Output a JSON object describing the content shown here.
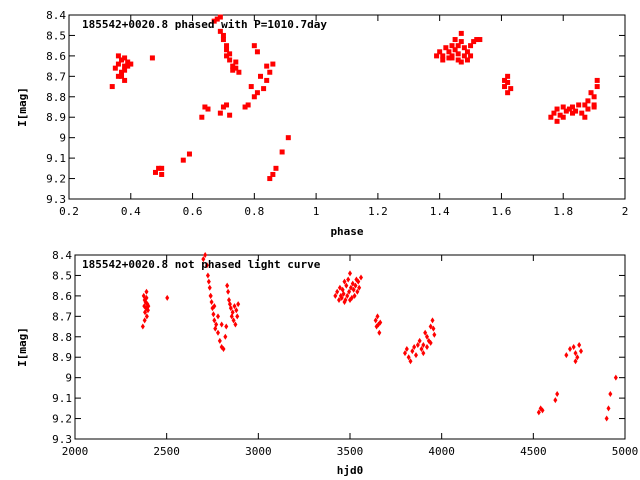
{
  "chart_data": [
    {
      "type": "scatter",
      "title": "185542+0020.8 phased with P=1010.7day",
      "xlabel": "phase",
      "ylabel": "I[mag]",
      "xlim": [
        0.2,
        2
      ],
      "ylim": [
        8.4,
        9.3
      ],
      "y_inverted": true,
      "grid": false,
      "marker_color": "#ff0000",
      "marker_shape": "square",
      "xticks": [
        "0.2",
        "0.4",
        "0.6",
        "0.8",
        "1",
        "1.2",
        "1.4",
        "1.6",
        "1.8",
        "2"
      ],
      "yticks": [
        "8.4",
        "8.5",
        "8.6",
        "8.7",
        "8.8",
        "8.9",
        "9",
        "9.1",
        "9.2",
        "9.3"
      ],
      "series": [
        {
          "x": [
            0.34,
            0.35,
            0.36,
            0.36,
            0.37,
            0.37,
            0.37,
            0.38,
            0.38,
            0.38,
            0.39,
            0.39,
            0.4,
            0.36,
            0.38,
            0.47,
            0.48,
            0.49,
            0.5,
            0.5,
            0.57,
            0.59,
            0.63,
            0.64,
            0.65,
            0.67,
            0.68,
            0.69,
            0.69,
            0.7,
            0.7,
            0.71,
            0.71,
            0.71,
            0.72,
            0.72,
            0.73,
            0.73,
            0.74,
            0.74,
            0.75,
            0.69,
            0.7,
            0.71,
            0.72,
            0.77,
            0.78,
            0.79,
            0.8,
            0.8,
            0.81,
            0.81,
            0.82,
            0.83,
            0.84,
            0.84,
            0.85,
            0.86,
            0.85,
            0.86,
            0.87,
            0.89,
            0.91
          ],
          "y": [
            8.75,
            8.66,
            8.6,
            8.64,
            8.62,
            8.68,
            8.7,
            8.61,
            8.65,
            8.67,
            8.63,
            8.65,
            8.64,
            8.7,
            8.72,
            8.61,
            9.17,
            9.15,
            9.15,
            9.18,
            9.11,
            9.08,
            8.9,
            8.85,
            8.86,
            8.43,
            8.42,
            8.41,
            8.48,
            8.5,
            8.52,
            8.55,
            8.57,
            8.6,
            8.59,
            8.62,
            8.65,
            8.67,
            8.63,
            8.66,
            8.68,
            8.88,
            8.85,
            8.84,
            8.89,
            8.85,
            8.84,
            8.75,
            8.8,
            8.55,
            8.58,
            8.78,
            8.7,
            8.76,
            8.72,
            8.65,
            8.68,
            8.64,
            9.2,
            9.18,
            9.15,
            9.07,
            9.0
          ]
        },
        {
          "x": [
            1.39,
            1.4,
            1.41,
            1.42,
            1.43,
            1.43,
            1.44,
            1.44,
            1.45,
            1.45,
            1.46,
            1.46,
            1.46,
            1.47,
            1.47,
            1.48,
            1.48,
            1.49,
            1.49,
            1.5,
            1.5,
            1.51,
            1.52,
            1.53,
            1.41,
            1.44,
            1.47,
            1.61,
            1.61,
            1.62,
            1.62,
            1.63,
            1.62,
            1.76,
            1.77,
            1.78,
            1.78,
            1.79,
            1.8,
            1.8,
            1.81,
            1.82,
            1.83,
            1.83,
            1.84,
            1.85,
            1.86,
            1.87,
            1.87,
            1.88,
            1.88,
            1.89,
            1.9,
            1.9,
            1.91,
            1.91,
            1.9
          ],
          "y": [
            8.6,
            8.58,
            8.6,
            8.56,
            8.58,
            8.61,
            8.55,
            8.6,
            8.52,
            8.57,
            8.55,
            8.59,
            8.62,
            8.49,
            8.53,
            8.56,
            8.6,
            8.58,
            8.62,
            8.55,
            8.6,
            8.53,
            8.52,
            8.52,
            8.62,
            8.61,
            8.63,
            8.72,
            8.75,
            8.7,
            8.73,
            8.76,
            8.78,
            8.9,
            8.88,
            8.92,
            8.86,
            8.89,
            8.85,
            8.9,
            8.87,
            8.86,
            8.88,
            8.85,
            8.87,
            8.84,
            8.88,
            8.9,
            8.84,
            8.86,
            8.82,
            8.78,
            8.8,
            8.84,
            8.75,
            8.72,
            8.85
          ]
        }
      ]
    },
    {
      "type": "scatter",
      "title": "185542+0020.8 not phased light curve",
      "xlabel": "hjd0",
      "ylabel": "I[mag]",
      "xlim": [
        2000,
        5000
      ],
      "ylim": [
        8.4,
        9.3
      ],
      "y_inverted": true,
      "grid": false,
      "marker_color": "#ff0000",
      "marker_shape": "diamond",
      "xticks": [
        "2000",
        "2500",
        "3000",
        "3500",
        "4000",
        "4500",
        "5000"
      ],
      "yticks": [
        "8.4",
        "8.5",
        "8.6",
        "8.7",
        "8.8",
        "8.9",
        "9",
        "9.1",
        "9.2",
        "9.3"
      ],
      "series": [
        {
          "x": [
            2370,
            2375,
            2378,
            2380,
            2382,
            2385,
            2388,
            2390,
            2392,
            2395,
            2398,
            2400,
            2380,
            2390,
            2503,
            2700,
            2710,
            2720,
            2725,
            2730,
            2735,
            2740,
            2745,
            2750,
            2755,
            2760,
            2765,
            2770,
            2780,
            2790,
            2800,
            2810,
            2820,
            2825,
            2830,
            2835,
            2840,
            2845,
            2850,
            2855,
            2860,
            2865,
            2870,
            2875,
            2880,
            2885,
            2890,
            2780,
            2800,
            2740,
            2760
          ],
          "y": [
            8.75,
            8.6,
            8.65,
            8.62,
            8.68,
            8.63,
            8.66,
            8.61,
            8.7,
            8.64,
            8.67,
            8.65,
            8.72,
            8.58,
            8.61,
            8.42,
            8.4,
            8.45,
            8.5,
            8.53,
            8.56,
            8.6,
            8.63,
            8.66,
            8.69,
            8.72,
            8.76,
            8.74,
            8.78,
            8.82,
            8.85,
            8.86,
            8.8,
            8.75,
            8.55,
            8.58,
            8.62,
            8.64,
            8.66,
            8.7,
            8.68,
            8.72,
            8.65,
            8.74,
            8.67,
            8.7,
            8.64,
            8.7,
            8.74,
            8.6,
            8.65
          ]
        },
        {
          "x": [
            3420,
            3430,
            3440,
            3445,
            3450,
            3455,
            3460,
            3465,
            3470,
            3475,
            3480,
            3485,
            3490,
            3495,
            3500,
            3505,
            3510,
            3515,
            3520,
            3525,
            3530,
            3535,
            3540,
            3545,
            3550,
            3470,
            3500,
            3560,
            3640,
            3645,
            3650,
            3655,
            3660,
            3665,
            3800,
            3810,
            3820,
            3830,
            3840,
            3850,
            3860,
            3870,
            3880,
            3890,
            3900,
            3910,
            3920,
            3930,
            3940,
            3950,
            3955,
            3960,
            3900,
            3920,
            3940
          ],
          "y": [
            8.6,
            8.58,
            8.62,
            8.56,
            8.6,
            8.61,
            8.57,
            8.59,
            8.53,
            8.62,
            8.55,
            8.6,
            8.52,
            8.58,
            8.49,
            8.56,
            8.61,
            8.54,
            8.57,
            8.6,
            8.55,
            8.52,
            8.58,
            8.53,
            8.56,
            8.63,
            8.62,
            8.51,
            8.72,
            8.75,
            8.7,
            8.74,
            8.78,
            8.73,
            8.88,
            8.86,
            8.9,
            8.92,
            8.87,
            8.85,
            8.89,
            8.84,
            8.82,
            8.86,
            8.84,
            8.78,
            8.8,
            8.82,
            8.75,
            8.72,
            8.76,
            8.79,
            8.88,
            8.85,
            8.83
          ]
        },
        {
          "x": [
            4530,
            4540,
            4550,
            4620,
            4630,
            4680,
            4700,
            4720,
            4730,
            4740,
            4750,
            4760,
            4730,
            4900,
            4910,
            4920,
            4950
          ],
          "y": [
            9.17,
            9.15,
            9.16,
            9.11,
            9.08,
            8.89,
            8.86,
            8.85,
            8.88,
            8.9,
            8.84,
            8.87,
            8.92,
            9.2,
            9.15,
            9.08,
            9.0
          ]
        }
      ]
    }
  ]
}
